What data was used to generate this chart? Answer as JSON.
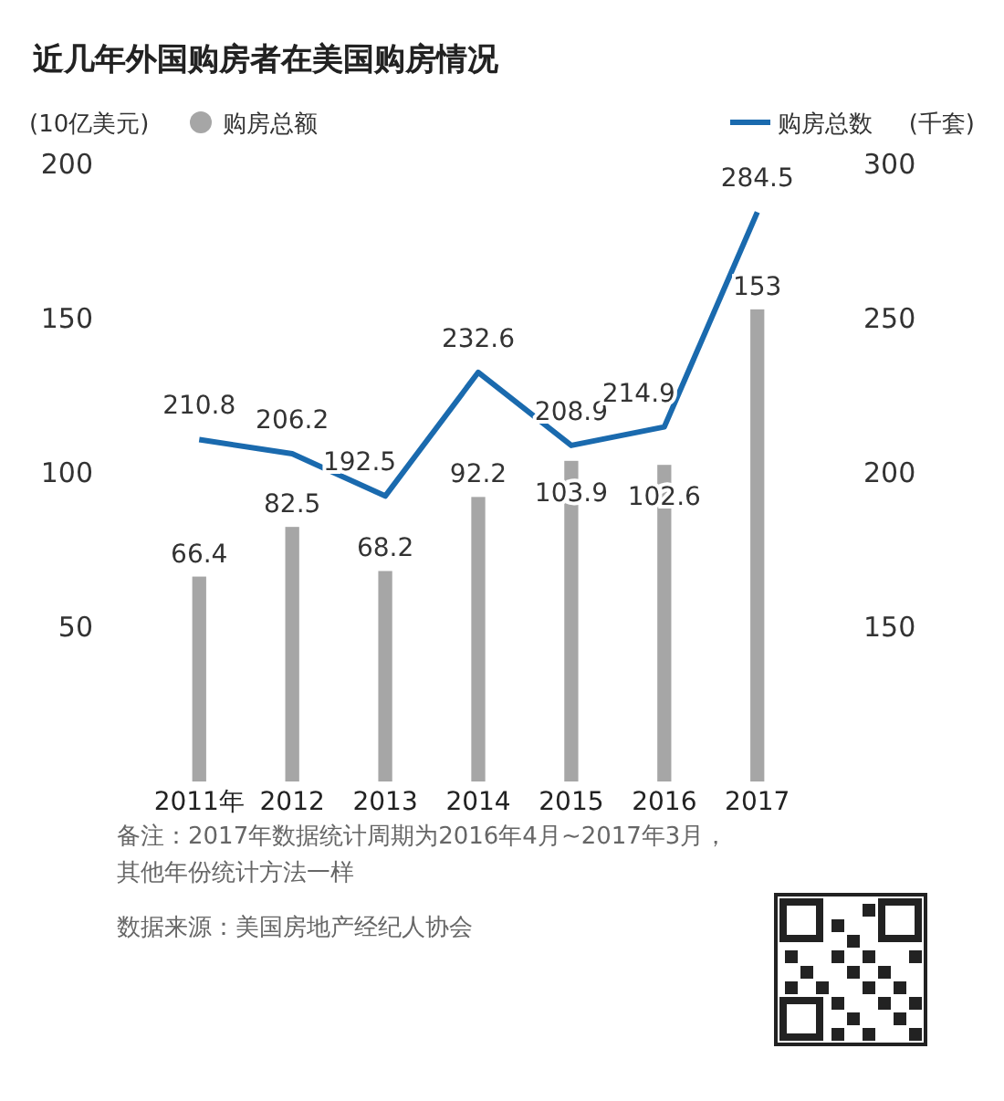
{
  "chart_data": {
    "type": "bar",
    "title": "近几年外国购房者在美国购房情况",
    "ylabel": "(10亿美元)",
    "y2label": "(千套)",
    "categories": [
      "2011年",
      "2012",
      "2013",
      "2014",
      "2015",
      "2016",
      "2017"
    ],
    "series": [
      {
        "name": "购房总额",
        "color": "#a6a6a6",
        "values": [
          66.4,
          82.5,
          68.2,
          92.2,
          103.9,
          102.6,
          153
        ]
      },
      {
        "name": "购房总数",
        "type": "line",
        "axis": "y2",
        "color": "#1a6aae",
        "values": [
          210.8,
          206.2,
          192.5,
          232.6,
          208.9,
          214.9,
          284.5
        ]
      }
    ],
    "ylim": [
      0,
      200
    ],
    "yticks": [
      50,
      100,
      150,
      200
    ],
    "y2lim": [
      100,
      300
    ],
    "y2ticks": [
      150,
      200,
      250,
      300
    ],
    "data_labels": true,
    "legend": "top",
    "grid": false,
    "marker": "none",
    "annotations": [
      "备注：2017年数据统计周期为2016年4月~2017年3月，其他年份统计方法一样",
      "数据来源：美国房地产经纪人协会"
    ]
  }
}
